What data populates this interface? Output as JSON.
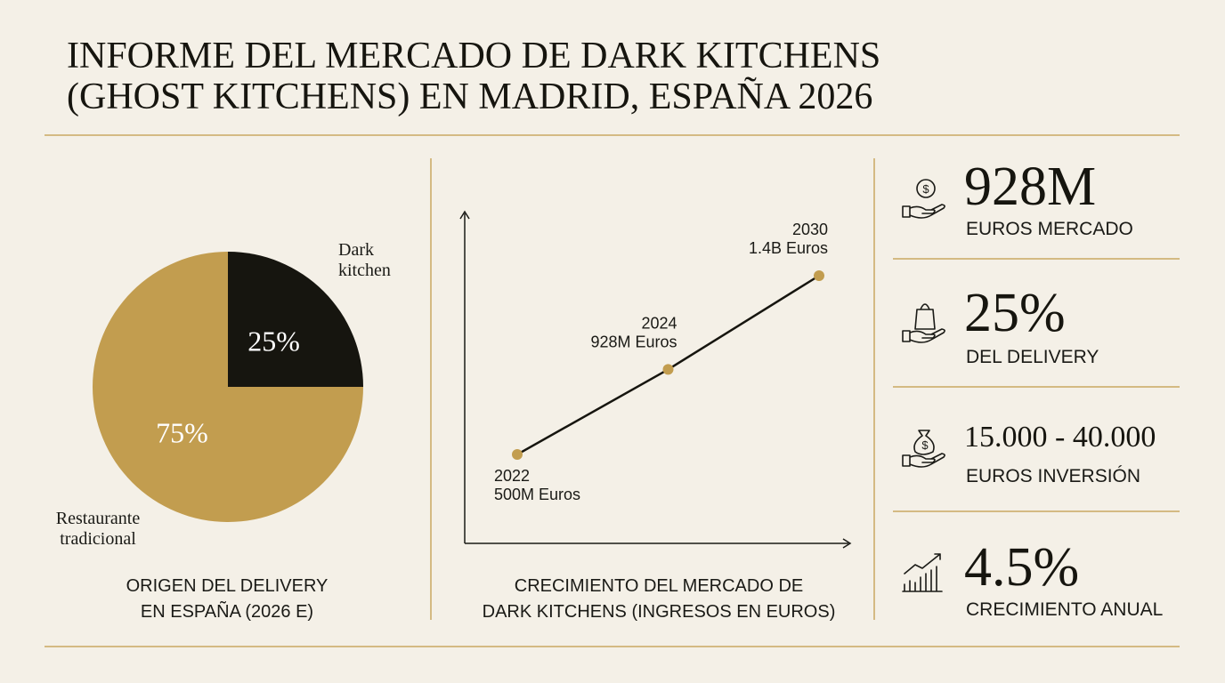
{
  "header": {
    "title": [
      "INFORME DEL MERCADO DE DARK KITCHENS",
      "(GHOST KITCHENS) EN MADRID, ESPAÑA 2026"
    ]
  },
  "chart_data": [
    {
      "type": "pie",
      "title": [
        "ORIGEN DEL DELIVERY",
        "EN ESPAÑA (2026 E)"
      ],
      "categories": [
        "Dark kitchen",
        "Restaurante tradicional"
      ],
      "values": [
        25,
        75
      ],
      "value_labels": [
        "25%",
        "75%"
      ],
      "colors": [
        "#16150f",
        "#c29d4f"
      ],
      "label_colors": [
        "#ffffff",
        "#ffffff"
      ]
    },
    {
      "type": "line",
      "title": [
        "CRECIMIENTO DEL MERCADO DE",
        "DARK KITCHENS (INGRESOS EN EUROS)"
      ],
      "categories": [
        "2022",
        "2024",
        "2030"
      ],
      "values": [
        500000000,
        928000000,
        1400000000
      ],
      "value_labels": [
        "500M Euros",
        "928M Euros",
        "1.4B Euros"
      ],
      "color": "#16150f",
      "marker_color": "#c29d4f"
    }
  ],
  "stats": [
    {
      "value": "928M",
      "label": "EUROS MERCADO"
    },
    {
      "value": "25%",
      "label": "DEL DELIVERY"
    },
    {
      "value": "15.000 - 40.000",
      "label": "EUROS INVERSIÓN"
    },
    {
      "value": "4.5%",
      "label": "CRECIMIENTO ANUAL"
    }
  ]
}
